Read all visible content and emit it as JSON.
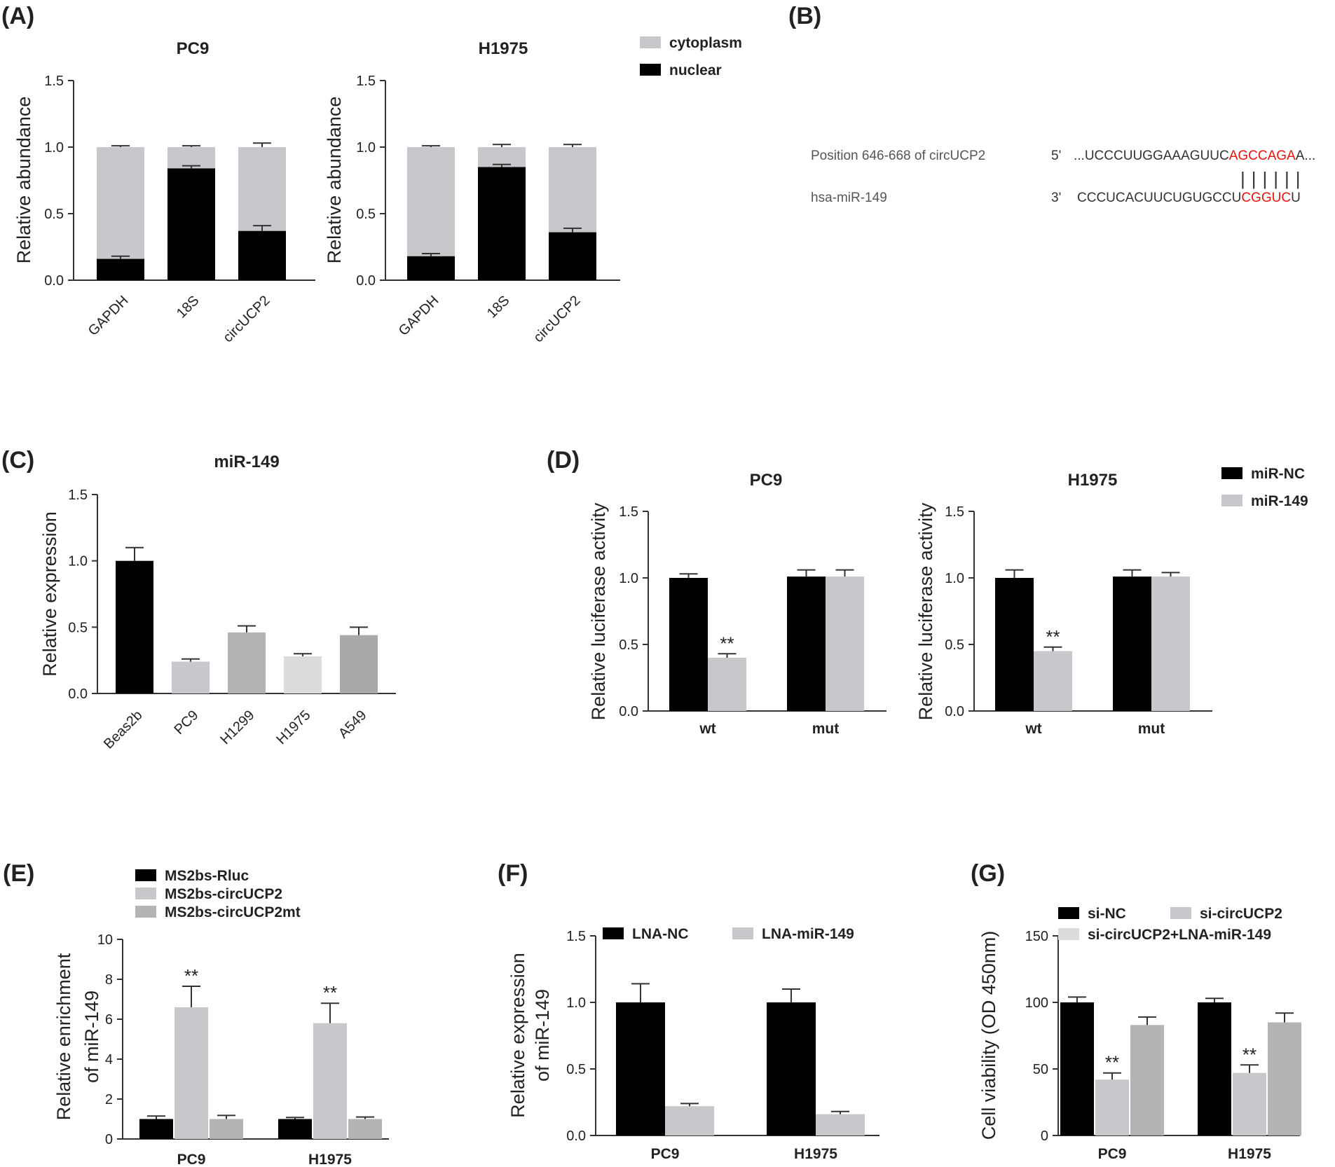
{
  "colors": {
    "black": "#000000",
    "gray_light": "#c7c7cc",
    "gray_mid": "#b4b4b4",
    "gray_bar": "#a9a9a9",
    "gray_pale": "#dcdcdc",
    "red": "#e8130f",
    "text": "#222222"
  },
  "panel_labels": {
    "a": "(A)",
    "b": "(B)",
    "c": "(C)",
    "d": "(D)",
    "e": "(E)",
    "f": "(F)",
    "g": "(G)"
  },
  "panel_b": {
    "circ_label": "Position 646-668 of circUCP2",
    "circ_prime": "5'",
    "circ_seq_prefix": "...UCCCUUGGAAAGUUC",
    "circ_seq_match": "AGCCAGA",
    "circ_seq_suffix": "A...",
    "pairing": "||||||",
    "mir_label": "hsa-miR-149",
    "mir_prime": "3'",
    "mir_seq_prefix": "CCCUCACUUCUGUGCCU",
    "mir_seq_match": "CGGUC",
    "mir_seq_suffix": "U"
  },
  "chart_data": [
    {
      "id": "A1",
      "type": "bar",
      "stacked": true,
      "title": "PC9",
      "ylabel": "Relative abundance",
      "xlabel": "",
      "ylim": [
        0,
        1.5
      ],
      "yticks": [
        "0.0",
        "0.5",
        "1.0",
        "1.5"
      ],
      "categories": [
        "GAPDH",
        "18S",
        "circUCP2"
      ],
      "series": [
        {
          "name": "nuclear",
          "values": [
            0.16,
            0.84,
            0.37
          ],
          "errors": [
            0.02,
            0.02,
            0.04
          ]
        },
        {
          "name": "cytoplasm",
          "values": [
            0.84,
            0.16,
            0.63
          ],
          "errors": [
            0.01,
            0.01,
            0.03
          ]
        }
      ]
    },
    {
      "id": "A2",
      "type": "bar",
      "stacked": true,
      "title": "H1975",
      "ylabel": "Relative abundance",
      "xlabel": "",
      "ylim": [
        0,
        1.5
      ],
      "yticks": [
        "0.0",
        "0.5",
        "1.0",
        "1.5"
      ],
      "categories": [
        "GAPDH",
        "18S",
        "circUCP2"
      ],
      "legend": [
        "cytoplasm",
        "nuclear"
      ],
      "series": [
        {
          "name": "nuclear",
          "values": [
            0.18,
            0.85,
            0.36
          ],
          "errors": [
            0.02,
            0.02,
            0.03
          ]
        },
        {
          "name": "cytoplasm",
          "values": [
            0.82,
            0.15,
            0.64
          ],
          "errors": [
            0.01,
            0.02,
            0.02
          ]
        }
      ]
    },
    {
      "id": "C",
      "type": "bar",
      "title": "miR-149",
      "ylabel": "Relative expression",
      "xlabel": "",
      "ylim": [
        0,
        1.5
      ],
      "yticks": [
        "0.0",
        "0.5",
        "1.0",
        "1.5"
      ],
      "categories": [
        "Beas2b",
        "PC9",
        "H1299",
        "H1975",
        "A549"
      ],
      "values": [
        1.0,
        0.24,
        0.46,
        0.28,
        0.44
      ],
      "errors": [
        0.1,
        0.02,
        0.05,
        0.02,
        0.06
      ]
    },
    {
      "id": "D1",
      "type": "bar",
      "title": "PC9",
      "ylabel": "Relative luciferase activity",
      "xlabel": "",
      "ylim": [
        0,
        1.5
      ],
      "yticks": [
        "0.0",
        "0.5",
        "1.0",
        "1.5"
      ],
      "categories": [
        "wt",
        "mut"
      ],
      "series": [
        {
          "name": "miR-NC",
          "values": [
            1.0,
            1.01
          ],
          "errors": [
            0.03,
            0.05
          ]
        },
        {
          "name": "miR-149",
          "values": [
            0.4,
            1.01
          ],
          "errors": [
            0.03,
            0.05
          ]
        }
      ],
      "annotations": [
        {
          "series": 1,
          "index": 0,
          "text": "**"
        }
      ]
    },
    {
      "id": "D2",
      "type": "bar",
      "title": "H1975",
      "ylabel": "Relative luciferase activity",
      "xlabel": "",
      "ylim": [
        0,
        1.5
      ],
      "yticks": [
        "0.0",
        "0.5",
        "1.0",
        "1.5"
      ],
      "categories": [
        "wt",
        "mut"
      ],
      "legend": [
        "miR-NC",
        "miR-149"
      ],
      "series": [
        {
          "name": "miR-NC",
          "values": [
            1.0,
            1.01
          ],
          "errors": [
            0.06,
            0.05
          ]
        },
        {
          "name": "miR-149",
          "values": [
            0.45,
            1.01
          ],
          "errors": [
            0.03,
            0.03
          ]
        }
      ],
      "annotations": [
        {
          "series": 1,
          "index": 0,
          "text": "**"
        }
      ]
    },
    {
      "id": "E",
      "type": "bar",
      "title": "",
      "ylabel": "Relative enrichment of miR-149",
      "xlabel": "",
      "ylim": [
        0,
        10
      ],
      "yticks": [
        "0",
        "2",
        "4",
        "6",
        "8",
        "10"
      ],
      "categories": [
        "PC9",
        "H1975"
      ],
      "legend": [
        "MS2bs-Rluc",
        "MS2bs-circUCP2",
        "MS2bs-circUCP2mt"
      ],
      "series": [
        {
          "name": "MS2bs-Rluc",
          "values": [
            1.0,
            1.0
          ],
          "errors": [
            0.15,
            0.08
          ]
        },
        {
          "name": "MS2bs-circUCP2",
          "values": [
            6.6,
            5.8
          ],
          "errors": [
            1.05,
            1.0
          ]
        },
        {
          "name": "MS2bs-circUCP2mt",
          "values": [
            1.0,
            1.0
          ],
          "errors": [
            0.18,
            0.1
          ]
        }
      ],
      "annotations": [
        {
          "series": 1,
          "index": 0,
          "text": "**"
        },
        {
          "series": 1,
          "index": 1,
          "text": "**"
        }
      ]
    },
    {
      "id": "F",
      "type": "bar",
      "title": "",
      "ylabel": "Relative expression of miR-149",
      "xlabel": "",
      "ylim": [
        0,
        1.5
      ],
      "yticks": [
        "0.0",
        "0.5",
        "1.0",
        "1.5"
      ],
      "categories": [
        "PC9",
        "H1975"
      ],
      "legend": [
        "LNA-NC",
        "LNA-miR-149"
      ],
      "series": [
        {
          "name": "LNA-NC",
          "values": [
            1.0,
            1.0
          ],
          "errors": [
            0.14,
            0.1
          ]
        },
        {
          "name": "LNA-miR-149",
          "values": [
            0.22,
            0.16
          ],
          "errors": [
            0.02,
            0.02
          ]
        }
      ]
    },
    {
      "id": "G",
      "type": "bar",
      "title": "",
      "ylabel": "Cell viability (OD 450nm)",
      "xlabel": "",
      "ylim": [
        0,
        150
      ],
      "yticks": [
        "0",
        "50",
        "100",
        "150"
      ],
      "categories": [
        "PC9",
        "H1975"
      ],
      "legend": [
        "si-NC",
        "si-circUCP2",
        "si-circUCP2+LNA-miR-149"
      ],
      "series": [
        {
          "name": "si-NC",
          "values": [
            100,
            100
          ],
          "errors": [
            4,
            3
          ]
        },
        {
          "name": "si-circUCP2",
          "values": [
            42,
            47
          ],
          "errors": [
            5,
            6
          ]
        },
        {
          "name": "si-circUCP2+LNA-miR-149",
          "values": [
            83,
            85
          ],
          "errors": [
            6,
            7
          ]
        }
      ],
      "annotations": [
        {
          "series": 1,
          "index": 0,
          "text": "**"
        },
        {
          "series": 1,
          "index": 1,
          "text": "**"
        }
      ]
    }
  ]
}
